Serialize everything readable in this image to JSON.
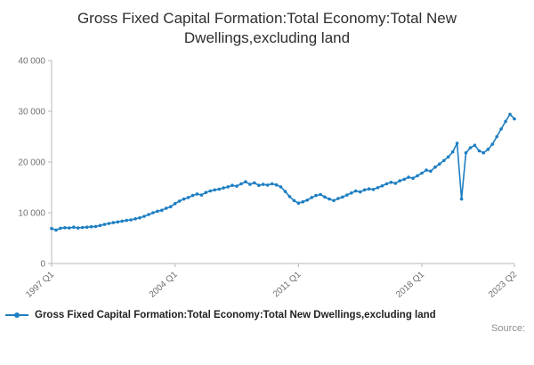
{
  "title": "Gross Fixed Capital Formation:Total Economy:Total New Dwellings,excluding land",
  "legend": {
    "label": "Gross Fixed Capital Formation:Total Economy:Total New Dwellings,excluding land"
  },
  "source_label": "Source:",
  "colors": {
    "line": "#1d7ec2",
    "axis": "#b8b8b8",
    "tick_text": "#707071",
    "title_text": "#2e2e2e"
  },
  "chart_data": {
    "type": "line",
    "title": "Gross Fixed Capital Formation:Total Economy:Total New Dwellings,excluding land",
    "xlabel": "",
    "ylabel": "",
    "ylim": [
      0,
      40000
    ],
    "grid": false,
    "markers": true,
    "legend_position": "bottom-left",
    "x_unit": "quarter",
    "x_start": "1997 Q1",
    "x_end": "2023 Q2",
    "y_ticks": [
      {
        "value": 0,
        "label": "0"
      },
      {
        "value": 10000,
        "label": "10 000"
      },
      {
        "value": 20000,
        "label": "20 000"
      },
      {
        "value": 30000,
        "label": "30 000"
      },
      {
        "value": 40000,
        "label": "40 000"
      }
    ],
    "x_ticks": [
      {
        "index": 0,
        "label": "1997 Q1"
      },
      {
        "index": 28,
        "label": "2004 Q1"
      },
      {
        "index": 56,
        "label": "2011 Q1"
      },
      {
        "index": 84,
        "label": "2018 Q1"
      },
      {
        "index": 105,
        "label": "2023 Q2"
      }
    ],
    "values": [
      6900,
      6600,
      6950,
      7050,
      7000,
      7150,
      7000,
      7100,
      7150,
      7250,
      7300,
      7500,
      7700,
      7900,
      8050,
      8200,
      8350,
      8500,
      8600,
      8800,
      9000,
      9300,
      9650,
      10000,
      10300,
      10500,
      10900,
      11200,
      11800,
      12300,
      12700,
      13000,
      13400,
      13700,
      13500,
      14000,
      14300,
      14500,
      14650,
      14900,
      15100,
      15400,
      15250,
      15700,
      16100,
      15600,
      15900,
      15400,
      15600,
      15450,
      15700,
      15500,
      15100,
      14200,
      13200,
      12400,
      11900,
      12150,
      12500,
      13000,
      13400,
      13600,
      13100,
      12700,
      12400,
      12800,
      13100,
      13500,
      13900,
      14300,
      14100,
      14500,
      14700,
      14600,
      14950,
      15300,
      15700,
      16000,
      15800,
      16300,
      16600,
      17000,
      16800,
      17300,
      17800,
      18400,
      18200,
      19000,
      19600,
      20300,
      21000,
      22000,
      23700,
      12700,
      21800,
      22800,
      23300,
      22200,
      21800,
      22500,
      23500,
      25000,
      26500,
      28000,
      29400,
      28500
    ]
  }
}
